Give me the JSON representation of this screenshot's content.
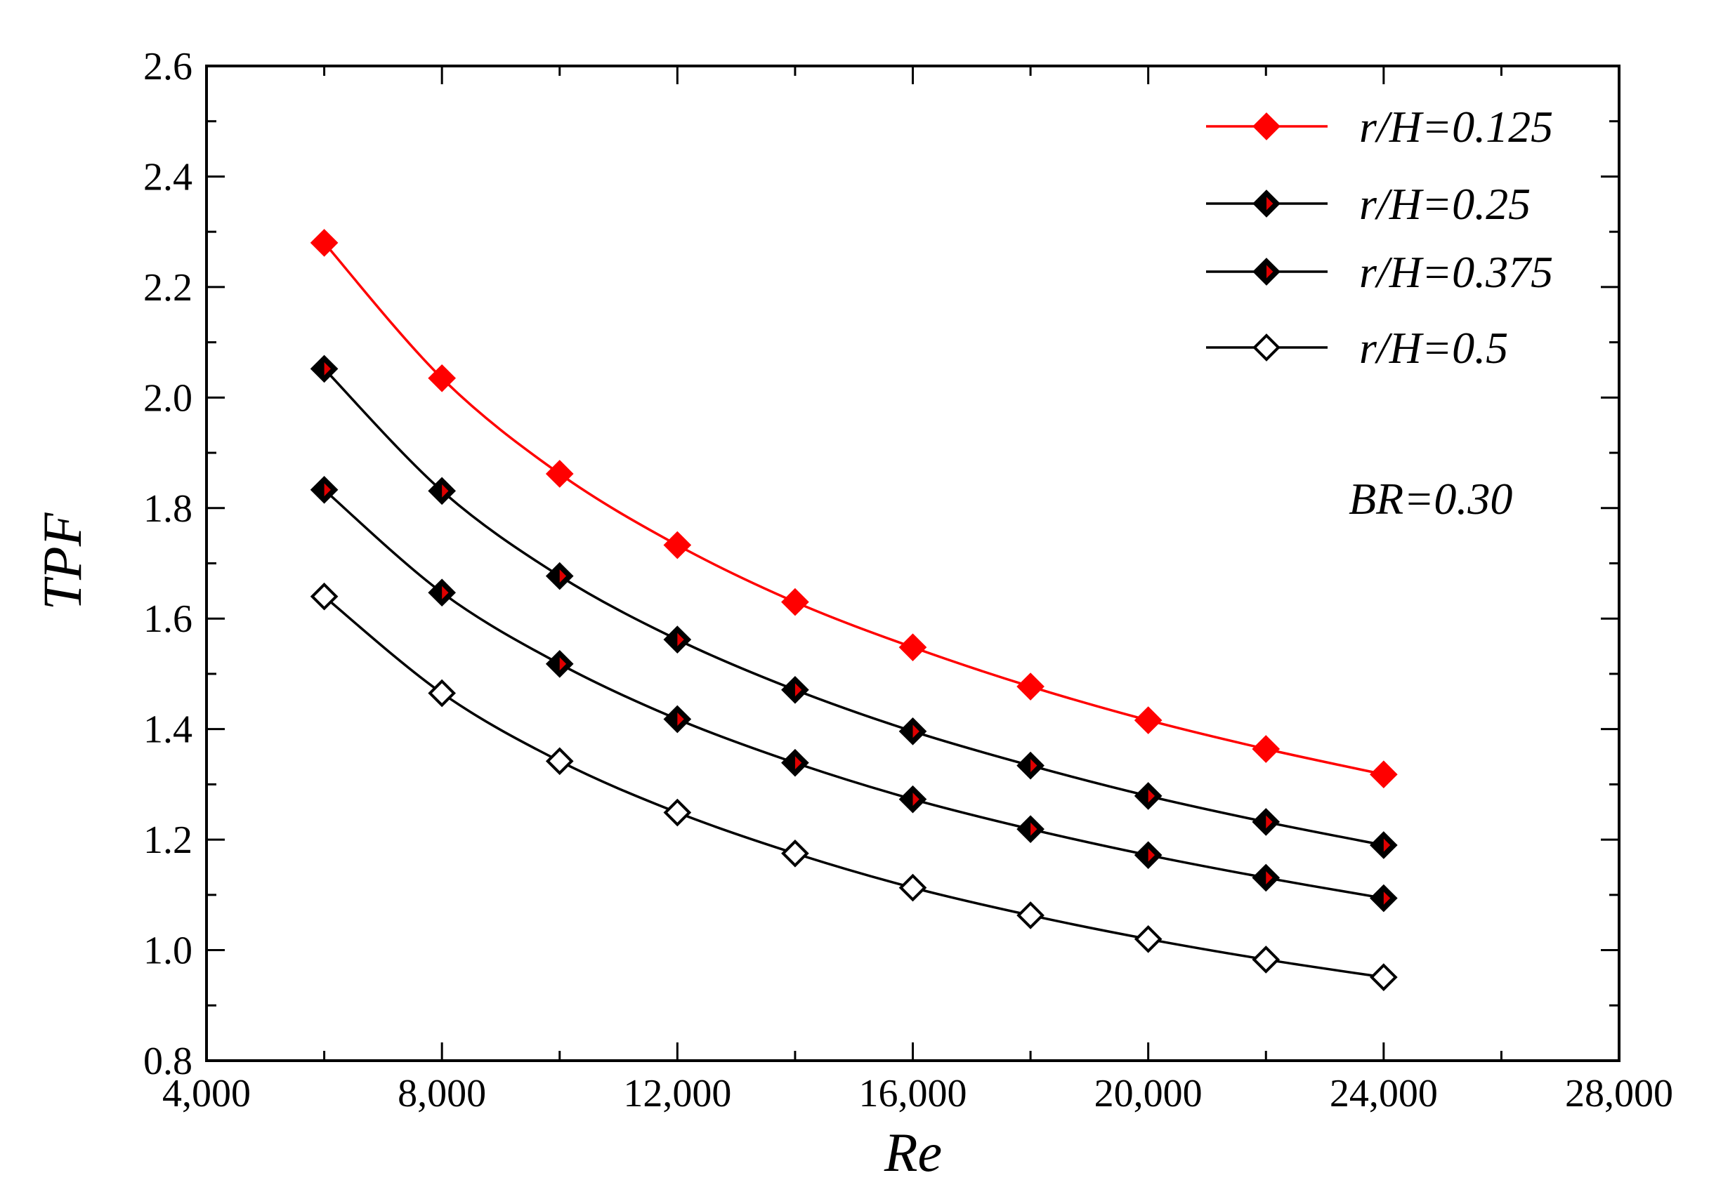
{
  "chart_data": {
    "type": "line",
    "title": "",
    "xlabel": "Re",
    "ylabel": "TPF",
    "xlim": [
      4000,
      28000
    ],
    "ylim": [
      0.8,
      2.6
    ],
    "xticks": [
      4000,
      8000,
      12000,
      16000,
      20000,
      24000,
      28000
    ],
    "xtick_labels": [
      "4,000",
      "8,000",
      "12,000",
      "16,000",
      "20,000",
      "24,000",
      "28,000"
    ],
    "yticks": [
      0.8,
      1.0,
      1.2,
      1.4,
      1.6,
      1.8,
      2.0,
      2.2,
      2.4,
      2.6
    ],
    "ytick_labels": [
      "0.8",
      "1.0",
      "1.2",
      "1.4",
      "1.6",
      "1.8",
      "2.0",
      "2.2",
      "2.4",
      "2.6"
    ],
    "grid": false,
    "legend_position": "top-right",
    "annotation": "BR=0.30",
    "x": [
      6000,
      8000,
      10000,
      12000,
      14000,
      16000,
      18000,
      20000,
      22000,
      24000
    ],
    "series": [
      {
        "name": "r/H=0.125",
        "color": "#ff0000",
        "marker": "filled-diamond-red",
        "values": [
          2.28,
          2.035,
          1.862,
          1.733,
          1.63,
          1.548,
          1.477,
          1.416,
          1.364,
          1.318
        ]
      },
      {
        "name": "r/H=0.25",
        "color": "#000000",
        "marker": "half-filled-diamond",
        "values": [
          2.052,
          1.831,
          1.677,
          1.562,
          1.471,
          1.396,
          1.334,
          1.279,
          1.232,
          1.19
        ]
      },
      {
        "name": "r/H=0.375",
        "color": "#000000",
        "marker": "half-filled-diamond",
        "values": [
          1.833,
          1.647,
          1.518,
          1.418,
          1.339,
          1.273,
          1.219,
          1.172,
          1.131,
          1.094
        ]
      },
      {
        "name": "r/H=0.5",
        "color": "#000000",
        "marker": "open-diamond",
        "values": [
          1.64,
          1.465,
          1.342,
          1.249,
          1.175,
          1.113,
          1.063,
          1.02,
          0.983,
          0.951
        ]
      }
    ]
  }
}
